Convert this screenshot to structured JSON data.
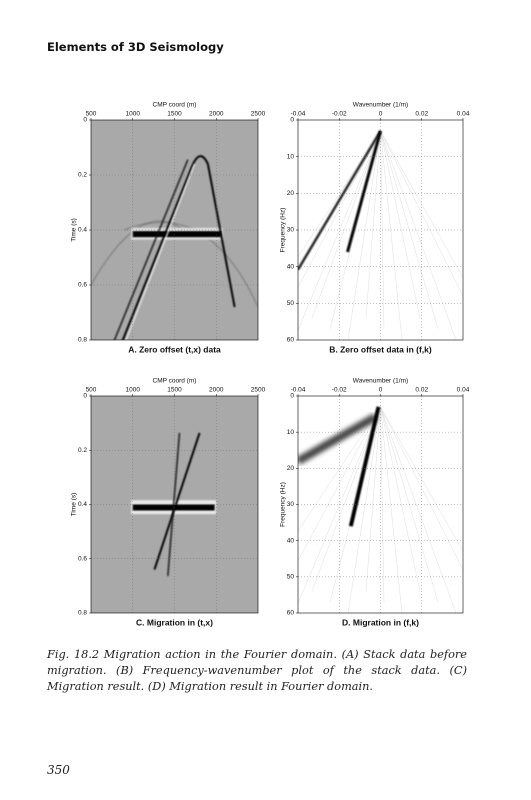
{
  "header": {
    "title": "Elements of 3D Seismology"
  },
  "figure": {
    "panels": [
      {
        "caption": "A. Zero offset (t,x) data",
        "x_axis": {
          "label": "CMP coord (m)",
          "ticks": [
            "500",
            "1000",
            "1500",
            "2000",
            "2500"
          ]
        },
        "y_axis": {
          "label": "Time (s)",
          "ticks": [
            "0",
            "0.2",
            "0.4",
            "0.6",
            "0.8"
          ]
        }
      },
      {
        "caption": "B. Zero offset data in (f,k)",
        "x_axis": {
          "label": "Wavenumber (1/m)",
          "ticks": [
            "-0.04",
            "-0.02",
            "0",
            "0.02",
            "0.04"
          ]
        },
        "y_axis": {
          "label": "Frequency (Hz)",
          "ticks": [
            "0",
            "10",
            "20",
            "30",
            "40",
            "50",
            "60"
          ]
        }
      },
      {
        "caption": "C. Migration in (t,x)",
        "x_axis": {
          "label": "CMP coord (m)",
          "ticks": [
            "500",
            "1000",
            "1500",
            "2000",
            "2500"
          ]
        },
        "y_axis": {
          "label": "Time (s)",
          "ticks": [
            "0",
            "0.2",
            "0.4",
            "0.6",
            "0.8"
          ]
        }
      },
      {
        "caption": "D. Migration in (f,k)",
        "x_axis": {
          "label": "Wavenumber (1/m)",
          "ticks": [
            "-0.04",
            "-0.02",
            "0",
            "0.02",
            "0.04"
          ]
        },
        "y_axis": {
          "label": "Frequency (Hz)",
          "ticks": [
            "0",
            "10",
            "20",
            "30",
            "40",
            "50",
            "60"
          ]
        }
      }
    ],
    "caption": "Fig. 18.2 Migration action in the Fourier domain. (A) Stack data before migration. (B) Frequency-wavenumber plot of the stack data. (C) Migration result. (D) Migration result in Fourier domain."
  },
  "footer": {
    "page_number": "350"
  }
}
